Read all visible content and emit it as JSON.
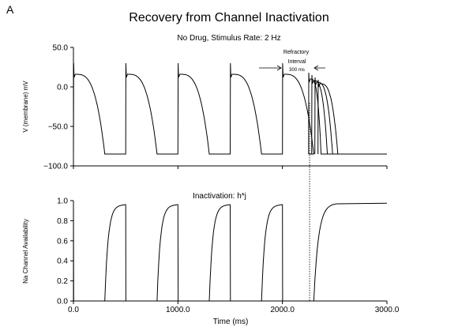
{
  "panel_label": "A",
  "title": "Recovery from Channel Inactivation",
  "subtitle": "No Drug,  Stimulus Rate: 2 Hz",
  "chart_data": [
    {
      "type": "line",
      "ylabel": "V (membrane)  mV",
      "ylim": [
        -100,
        50
      ],
      "xlim": [
        0,
        3000
      ],
      "yticks": [
        50,
        0,
        -50,
        -100
      ],
      "ytick_labels": [
        "50.0",
        "0.0",
        "−50.0",
        "−100.0"
      ],
      "rest_potential": -85,
      "series": [
        {
          "beat_onsets": [
            0,
            500,
            1000,
            1500,
            2000
          ],
          "peak": 30,
          "plateau": 16,
          "apd": 300
        },
        {
          "test_pulse_onsets": [
            2250,
            2280,
            2310,
            2340
          ],
          "apd_values": [
            120,
            150,
            170,
            190
          ]
        }
      ],
      "annotation": {
        "lines": [
          "Refractory",
          "Interval",
          "300 ms"
        ],
        "interval_start": 2000,
        "interval_end": 2300
      }
    },
    {
      "type": "line",
      "ylabel": "Na Channel Availability",
      "xlabel": "Time (ms)",
      "annotation": "Inactivation:  h*j",
      "ylim": [
        0,
        1
      ],
      "xlim": [
        0,
        3000
      ],
      "yticks": [
        0,
        0.2,
        0.4,
        0.6,
        0.8,
        1.0
      ],
      "ytick_labels": [
        "0.0",
        "0.2",
        "0.4",
        "0.6",
        "0.8",
        "1.0"
      ],
      "xticks": [
        0,
        1000,
        2000,
        3000
      ],
      "xtick_labels": [
        "0.0",
        "1000.0",
        "2000.0",
        "3000.0"
      ],
      "series": [
        {
          "beat_onsets": [
            0,
            500,
            1000,
            1500,
            2000
          ],
          "recovery_start": 300,
          "plateau": 0.96,
          "final": 0.975
        }
      ]
    }
  ],
  "marker_time": 2260
}
